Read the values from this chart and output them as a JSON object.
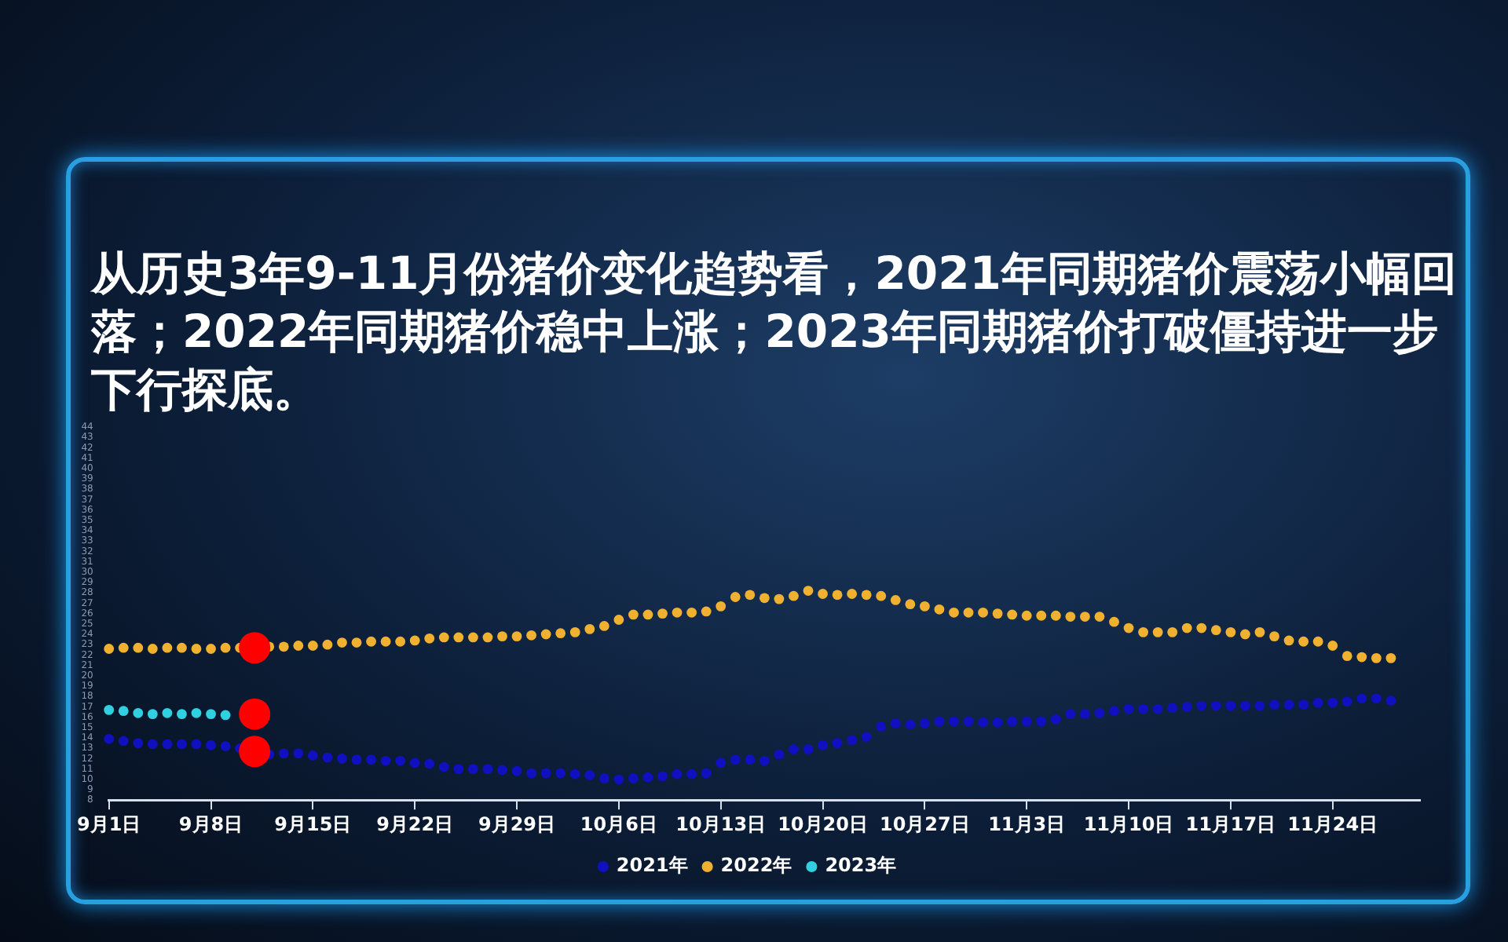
{
  "chart_data": {
    "type": "scatter",
    "title": "从历史3年9-11月份猪价变化趋势看，2021年同期猪价震荡小幅回落；2022年同期猪价稳中上涨；2023年同期猪价打破僵持进一步下行探底。",
    "categories": [
      "9月1日",
      null,
      null,
      null,
      null,
      null,
      null,
      "9月8日",
      null,
      null,
      null,
      null,
      null,
      null,
      "9月15日",
      null,
      null,
      null,
      null,
      null,
      null,
      "9月22日",
      null,
      null,
      null,
      null,
      null,
      null,
      "9月29日",
      null,
      null,
      null,
      null,
      null,
      null,
      "10月6日",
      null,
      null,
      null,
      null,
      null,
      null,
      "10月13日",
      null,
      null,
      null,
      null,
      null,
      null,
      "10月20日",
      null,
      null,
      null,
      null,
      null,
      null,
      "10月27日",
      null,
      null,
      null,
      null,
      null,
      null,
      "11月3日",
      null,
      null,
      null,
      null,
      null,
      null,
      "11月10日",
      null,
      null,
      null,
      null,
      null,
      null,
      "11月17日",
      null,
      null,
      null,
      null,
      null,
      null,
      "11月24日",
      null,
      null,
      null,
      null,
      null,
      null
    ],
    "series": [
      {
        "name": "2021年",
        "color": "#1010c0",
        "values": [
          13.9,
          13.7,
          13.5,
          13.4,
          13.4,
          13.4,
          13.4,
          13.3,
          13.2,
          13.0,
          null,
          12.4,
          12.5,
          12.5,
          12.3,
          12.1,
          12.0,
          11.9,
          11.9,
          11.8,
          11.8,
          11.6,
          11.5,
          11.2,
          11.0,
          11.0,
          11.0,
          10.9,
          10.8,
          10.6,
          10.6,
          10.6,
          10.5,
          10.4,
          10.1,
          10.0,
          10.1,
          10.2,
          10.3,
          10.5,
          10.5,
          10.6,
          11.6,
          11.9,
          11.9,
          11.8,
          12.4,
          12.9,
          12.9,
          13.3,
          13.5,
          13.8,
          14.1,
          15.1,
          15.4,
          15.3,
          15.4,
          15.6,
          15.6,
          15.6,
          15.5,
          15.5,
          15.6,
          15.6,
          15.6,
          15.8,
          16.3,
          16.3,
          16.4,
          16.6,
          16.8,
          16.8,
          16.8,
          16.9,
          17.0,
          17.1,
          17.1,
          17.1,
          17.1,
          17.1,
          17.2,
          17.2,
          17.2,
          17.4,
          17.4,
          17.5,
          17.8,
          17.8,
          17.6,
          null,
          null
        ]
      },
      {
        "name": "2022年",
        "color": "#f0b030",
        "values": [
          22.6,
          22.7,
          22.7,
          22.6,
          22.7,
          22.7,
          22.6,
          22.6,
          22.7,
          22.7,
          null,
          22.8,
          22.8,
          22.9,
          22.9,
          23.0,
          23.2,
          23.2,
          23.3,
          23.3,
          23.3,
          23.4,
          23.6,
          23.7,
          23.7,
          23.7,
          23.7,
          23.8,
          23.8,
          23.9,
          24.0,
          24.1,
          24.2,
          24.5,
          24.8,
          25.4,
          25.9,
          25.9,
          26.0,
          26.1,
          26.1,
          26.2,
          26.7,
          27.6,
          27.8,
          27.5,
          27.4,
          27.7,
          28.2,
          27.9,
          27.8,
          27.9,
          27.8,
          27.7,
          27.3,
          26.9,
          26.7,
          26.4,
          26.1,
          26.1,
          26.1,
          26.0,
          25.9,
          25.8,
          25.8,
          25.8,
          25.7,
          25.7,
          25.7,
          25.2,
          24.6,
          24.2,
          24.2,
          24.2,
          24.6,
          24.6,
          24.4,
          24.2,
          24.0,
          24.2,
          23.8,
          23.4,
          23.3,
          23.3,
          22.9,
          21.9,
          21.8,
          21.7,
          21.7,
          null,
          null
        ]
      },
      {
        "name": "2023年",
        "color": "#30d0e0",
        "values": [
          16.7,
          16.6,
          16.4,
          16.3,
          16.4,
          16.3,
          16.4,
          16.3,
          16.2,
          null,
          null,
          null,
          null,
          null,
          null,
          null,
          null,
          null,
          null,
          null,
          null,
          null,
          null,
          null,
          null,
          null,
          null,
          null,
          null,
          null,
          null,
          null,
          null,
          null,
          null,
          null,
          null,
          null,
          null,
          null,
          null,
          null,
          null,
          null,
          null,
          null,
          null,
          null,
          null,
          null,
          null,
          null,
          null,
          null,
          null,
          null,
          null,
          null,
          null,
          null,
          null,
          null,
          null,
          null,
          null,
          null,
          null,
          null,
          null,
          null,
          null,
          null,
          null,
          null,
          null,
          null,
          null,
          null,
          null,
          null,
          null,
          null,
          null,
          null,
          null,
          null,
          null,
          null,
          null,
          null,
          null
        ]
      },
      {
        "color": "#ff0000",
        "values": [
          null,
          null,
          null,
          null,
          null,
          null,
          null,
          null,
          null,
          null,
          22.7,
          null,
          null,
          null,
          null,
          null,
          null,
          null,
          null,
          null,
          null,
          null,
          null,
          null,
          null,
          null,
          null,
          null,
          null,
          null,
          null,
          null,
          null,
          null,
          null,
          null,
          null,
          null,
          null,
          null,
          null,
          null,
          null,
          null,
          null,
          null,
          null,
          null,
          null,
          null,
          null,
          null,
          null,
          null,
          null,
          null,
          null,
          null,
          null,
          null,
          null,
          null,
          null,
          null,
          null,
          null,
          null,
          null,
          null,
          null,
          null,
          null,
          null,
          null,
          null,
          null,
          null,
          null,
          null,
          null,
          null,
          null,
          null,
          null,
          null,
          null,
          null,
          null,
          null,
          null,
          null
        ]
      },
      {
        "color": "#ff0000",
        "values": [
          null,
          null,
          null,
          null,
          null,
          null,
          null,
          null,
          null,
          null,
          16.3,
          null,
          null,
          null,
          null,
          null,
          null,
          null,
          null,
          null,
          null,
          null,
          null,
          null,
          null,
          null,
          null,
          null,
          null,
          null,
          null,
          null,
          null,
          null,
          null,
          null,
          null,
          null,
          null,
          null,
          null,
          null,
          null,
          null,
          null,
          null,
          null,
          null,
          null,
          null,
          null,
          null,
          null,
          null,
          null,
          null,
          null,
          null,
          null,
          null,
          null,
          null,
          null,
          null,
          null,
          null,
          null,
          null,
          null,
          null,
          null,
          null,
          null,
          null,
          null,
          null,
          null,
          null,
          null,
          null,
          null,
          null,
          null,
          null,
          null,
          null,
          null,
          null,
          null,
          null,
          null
        ]
      },
      {
        "color": "#ff0000",
        "values": [
          null,
          null,
          null,
          null,
          null,
          null,
          null,
          null,
          null,
          null,
          12.7,
          null,
          null,
          null,
          null,
          null,
          null,
          null,
          null,
          null,
          null,
          null,
          null,
          null,
          null,
          null,
          null,
          null,
          null,
          null,
          null,
          null,
          null,
          null,
          null,
          null,
          null,
          null,
          null,
          null,
          null,
          null,
          null,
          null,
          null,
          null,
          null,
          null,
          null,
          null,
          null,
          null,
          null,
          null,
          null,
          null,
          null,
          null,
          null,
          null,
          null,
          null,
          null,
          null,
          null,
          null,
          null,
          null,
          null,
          null,
          null,
          null,
          null,
          null,
          null,
          null,
          null,
          null,
          null,
          null,
          null,
          null,
          null,
          null,
          null,
          null,
          null,
          null,
          null,
          null,
          null
        ]
      }
    ],
    "ylim": [
      8,
      44
    ],
    "yticks": [
      8,
      9,
      10,
      11,
      12,
      13,
      14,
      15,
      16,
      17,
      18,
      19,
      20,
      21,
      22,
      23,
      24,
      25,
      26,
      27,
      28,
      29,
      30,
      31,
      32,
      33,
      34,
      35,
      36,
      37,
      38,
      39,
      40,
      41,
      42,
      43,
      44
    ],
    "grid": false,
    "legend": "bottom",
    "marker": "circle"
  }
}
